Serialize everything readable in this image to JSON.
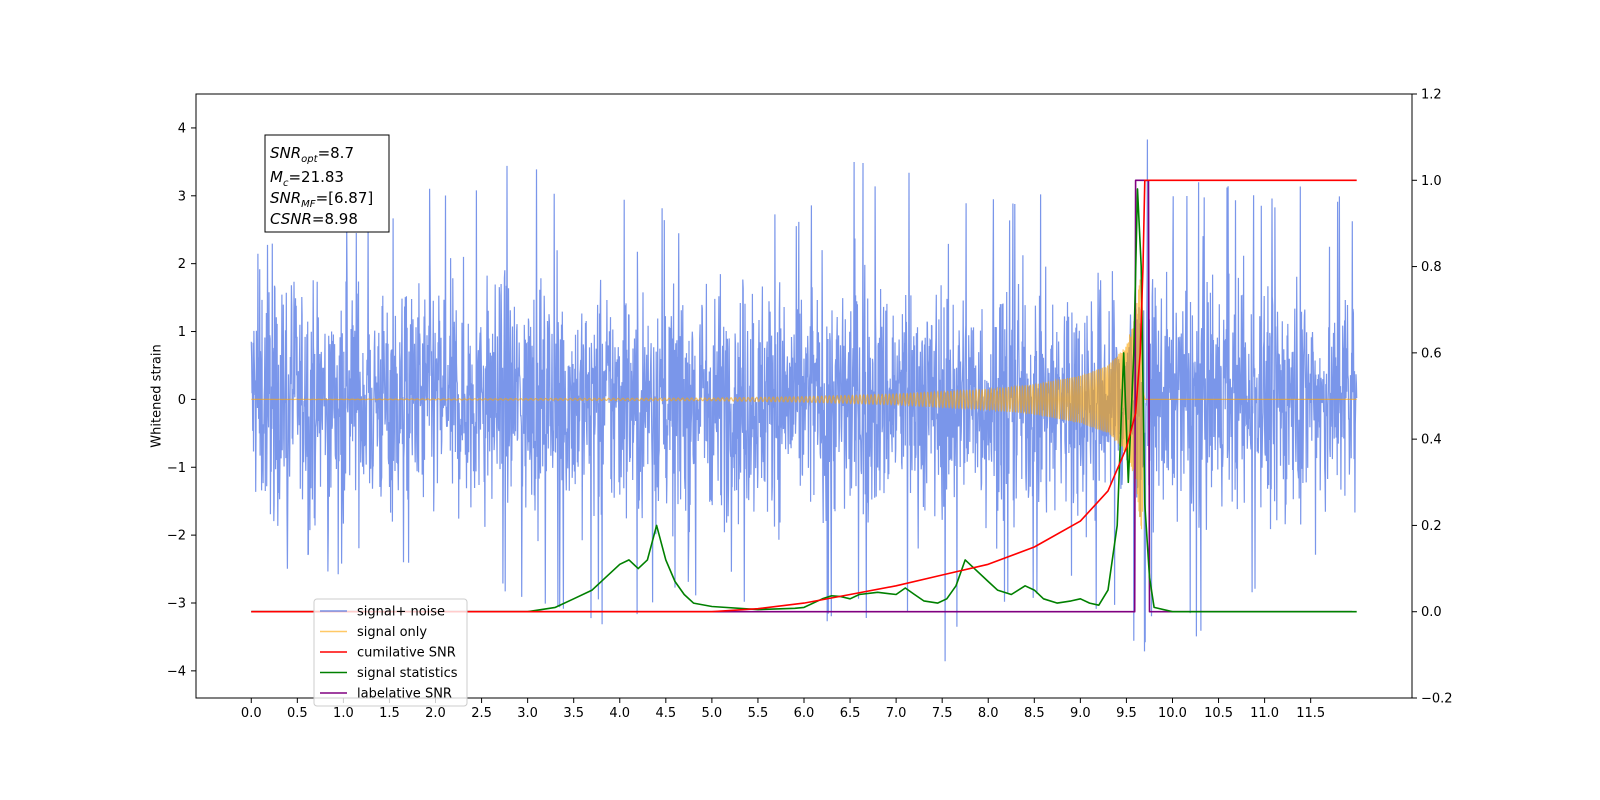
{
  "chart_data": {
    "type": "line",
    "title": "",
    "xlabel": "",
    "ylabel": "Whitened strain",
    "xlim": [
      -0.6,
      12.6
    ],
    "ylim_left": [
      -4.4,
      4.5
    ],
    "ylim_right": [
      -0.2,
      1.2
    ],
    "x_ticks": [
      "0.0",
      "0.5",
      "1.0",
      "1.5",
      "2.0",
      "2.5",
      "3.0",
      "3.5",
      "4.0",
      "4.5",
      "5.0",
      "5.5",
      "6.0",
      "6.5",
      "7.0",
      "7.5",
      "8.0",
      "8.5",
      "9.0",
      "9.5",
      "10.0",
      "10.5",
      "11.0",
      "11.5"
    ],
    "y_ticks_left": [
      "4",
      "3",
      "2",
      "1",
      "0",
      "−1",
      "−2",
      "−3",
      "−4"
    ],
    "y_ticks_right": [
      "1.2",
      "1.0",
      "0.8",
      "0.6",
      "0.4",
      "0.2",
      "0.0",
      "−0.2"
    ],
    "grid": false,
    "legend_position": "lower-left",
    "annotation": {
      "snr_opt": {
        "base": "SNR",
        "sub": "opt",
        "value": "=8.7"
      },
      "mc": {
        "base": "M",
        "sub": "c",
        "value": "=21.83"
      },
      "snr_mf": {
        "base": "SNR",
        "sub": "MF",
        "value": "=[6.87]"
      },
      "csnr": {
        "base": "CSNR",
        "sub": "",
        "value": "=8.98"
      }
    },
    "series": [
      {
        "name": "signal+ noise",
        "axis": "left",
        "color": "#4169e1",
        "description": "whitened noise plus signal, roughly ±2 to ±3.5 with occasional peaks up to 4.1 and down to −4.0",
        "x_range": [
          0.0,
          12.0
        ],
        "envelope_max": [
          [
            0.0,
            2.3
          ],
          [
            1.0,
            2.6
          ],
          [
            2.0,
            3.5
          ],
          [
            2.9,
            3.5
          ],
          [
            4.0,
            3.1
          ],
          [
            5.0,
            3.0
          ],
          [
            6.0,
            3.0
          ],
          [
            6.5,
            3.6
          ],
          [
            7.0,
            3.6
          ],
          [
            8.0,
            3.1
          ],
          [
            9.0,
            3.1
          ],
          [
            9.6,
            3.3
          ],
          [
            9.65,
            4.1
          ],
          [
            10.0,
            3.2
          ],
          [
            11.0,
            3.3
          ],
          [
            11.75,
            3.4
          ],
          [
            12.0,
            2.8
          ]
        ],
        "envelope_min": [
          [
            0.0,
            -2.4
          ],
          [
            1.0,
            -2.8
          ],
          [
            2.0,
            -2.8
          ],
          [
            2.9,
            -3.1
          ],
          [
            4.1,
            -3.4
          ],
          [
            5.0,
            -2.9
          ],
          [
            6.3,
            -3.5
          ],
          [
            7.0,
            -3.0
          ],
          [
            7.45,
            -4.0
          ],
          [
            8.0,
            -3.2
          ],
          [
            9.0,
            -3.0
          ],
          [
            9.6,
            -3.8
          ],
          [
            10.0,
            -3.5
          ],
          [
            10.5,
            -3.7
          ],
          [
            11.0,
            -3.0
          ],
          [
            12.0,
            -2.9
          ]
        ]
      },
      {
        "name": "signal only",
        "axis": "left",
        "color": "#ffa500",
        "description": "chirp signal with amplitude growing toward merger at ~9.65 s",
        "amplitude_envelope": [
          [
            0.0,
            0.0
          ],
          [
            5.0,
            0.02
          ],
          [
            6.0,
            0.04
          ],
          [
            7.0,
            0.08
          ],
          [
            8.0,
            0.15
          ],
          [
            8.5,
            0.22
          ],
          [
            9.0,
            0.35
          ],
          [
            9.3,
            0.5
          ],
          [
            9.5,
            0.8
          ],
          [
            9.6,
            1.3
          ],
          [
            9.67,
            2.0
          ],
          [
            9.7,
            0.0
          ],
          [
            12.0,
            0.0
          ]
        ]
      },
      {
        "name": "cumilative SNR",
        "axis": "right",
        "color": "#ff0000",
        "points": [
          [
            0.0,
            0.0
          ],
          [
            5.0,
            0.0
          ],
          [
            5.5,
            0.007
          ],
          [
            6.0,
            0.02
          ],
          [
            6.5,
            0.04
          ],
          [
            7.0,
            0.06
          ],
          [
            7.5,
            0.085
          ],
          [
            8.0,
            0.11
          ],
          [
            8.5,
            0.15
          ],
          [
            9.0,
            0.21
          ],
          [
            9.3,
            0.28
          ],
          [
            9.5,
            0.38
          ],
          [
            9.6,
            0.46
          ],
          [
            9.65,
            0.6
          ],
          [
            9.68,
            0.8
          ],
          [
            9.7,
            1.0
          ],
          [
            12.0,
            1.0
          ]
        ]
      },
      {
        "name": "signal statistics",
        "axis": "right",
        "color": "#008000",
        "points": [
          [
            0.0,
            0.0
          ],
          [
            3.0,
            0.0
          ],
          [
            3.3,
            0.01
          ],
          [
            3.5,
            0.03
          ],
          [
            3.7,
            0.05
          ],
          [
            3.85,
            0.08
          ],
          [
            4.0,
            0.11
          ],
          [
            4.1,
            0.12
          ],
          [
            4.2,
            0.1
          ],
          [
            4.3,
            0.12
          ],
          [
            4.4,
            0.2
          ],
          [
            4.5,
            0.12
          ],
          [
            4.6,
            0.07
          ],
          [
            4.7,
            0.04
          ],
          [
            4.8,
            0.02
          ],
          [
            5.0,
            0.012
          ],
          [
            5.5,
            0.005
          ],
          [
            5.9,
            0.008
          ],
          [
            6.0,
            0.01
          ],
          [
            6.2,
            0.03
          ],
          [
            6.3,
            0.037
          ],
          [
            6.4,
            0.035
          ],
          [
            6.5,
            0.03
          ],
          [
            6.6,
            0.04
          ],
          [
            6.8,
            0.045
          ],
          [
            7.0,
            0.04
          ],
          [
            7.1,
            0.055
          ],
          [
            7.2,
            0.04
          ],
          [
            7.3,
            0.025
          ],
          [
            7.45,
            0.02
          ],
          [
            7.55,
            0.03
          ],
          [
            7.65,
            0.06
          ],
          [
            7.75,
            0.12
          ],
          [
            7.85,
            0.1
          ],
          [
            8.0,
            0.07
          ],
          [
            8.1,
            0.05
          ],
          [
            8.25,
            0.04
          ],
          [
            8.4,
            0.06
          ],
          [
            8.5,
            0.05
          ],
          [
            8.6,
            0.03
          ],
          [
            8.75,
            0.02
          ],
          [
            8.9,
            0.025
          ],
          [
            9.0,
            0.03
          ],
          [
            9.1,
            0.02
          ],
          [
            9.2,
            0.015
          ],
          [
            9.3,
            0.05
          ],
          [
            9.4,
            0.2
          ],
          [
            9.47,
            0.6
          ],
          [
            9.52,
            0.3
          ],
          [
            9.58,
            0.6
          ],
          [
            9.62,
            0.98
          ],
          [
            9.66,
            0.8
          ],
          [
            9.7,
            0.25
          ],
          [
            9.75,
            0.08
          ],
          [
            9.8,
            0.01
          ],
          [
            10.0,
            0.0
          ],
          [
            12.0,
            0.0
          ]
        ]
      },
      {
        "name": "labelative SNR",
        "axis": "right",
        "color": "#800080",
        "points": [
          [
            0.0,
            0.0
          ],
          [
            9.59,
            0.0
          ],
          [
            9.6,
            1.0
          ],
          [
            9.74,
            1.0
          ],
          [
            9.75,
            0.0
          ],
          [
            11.95,
            0.0
          ]
        ]
      }
    ]
  }
}
